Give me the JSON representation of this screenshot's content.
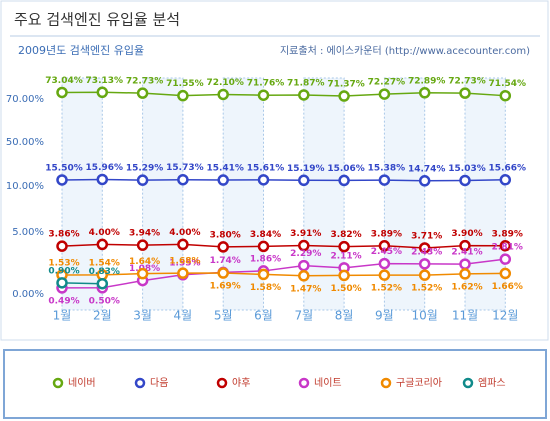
{
  "chart_data": {
    "type": "line",
    "title": "주요 검색엔진 유입율 분석",
    "subtitle": "2009년도 검색엔진 유입율",
    "source": "지료출처 : 에이스카운터 (http://www.acecounter.com)",
    "categories": [
      "1월",
      "2월",
      "3월",
      "4월",
      "5월",
      "6월",
      "7월",
      "8월",
      "9월",
      "10월",
      "11월",
      "12월"
    ],
    "ylim": [
      0,
      80
    ],
    "yticks": [
      {
        "value": 0,
        "label": "0.00%"
      },
      {
        "value": 5,
        "label": "5.00%"
      },
      {
        "value": 10,
        "label": "10.00%"
      },
      {
        "value": 50,
        "label": "50.00%"
      },
      {
        "value": 70,
        "label": "70.00%"
      }
    ],
    "legend": "bottom",
    "series": [
      {
        "name": "네이버",
        "color": "#66a811",
        "values": [
          73.04,
          73.13,
          72.73,
          71.55,
          72.1,
          71.76,
          71.87,
          71.37,
          72.27,
          72.89,
          72.73,
          71.54
        ],
        "value_labels": [
          "73.04%",
          "73.13%",
          "72.73%",
          "71.55%",
          "72.10%",
          "71.76%",
          "71.87%",
          "71.37%",
          "72.27%",
          "72.89%",
          "72.73%",
          "71.54%"
        ]
      },
      {
        "name": "다음",
        "color": "#3347c8",
        "values": [
          15.5,
          15.96,
          15.29,
          15.73,
          15.41,
          15.61,
          15.19,
          15.06,
          15.38,
          14.74,
          15.03,
          15.66
        ],
        "value_labels": [
          "15.50%",
          "15.96%",
          "15.29%",
          "15.73%",
          "15.41%",
          "15.61%",
          "15.19%",
          "15.06%",
          "15.38%",
          "14.74%",
          "15.03%",
          "15.66%"
        ]
      },
      {
        "name": "야후",
        "color": "#c00000",
        "values": [
          3.86,
          4.0,
          3.94,
          4.0,
          3.8,
          3.84,
          3.91,
          3.82,
          3.89,
          3.71,
          3.9,
          3.89
        ],
        "value_labels": [
          "3.86%",
          "4.00%",
          "3.94%",
          "4.00%",
          "3.80%",
          "3.84%",
          "3.91%",
          "3.82%",
          "3.89%",
          "3.71%",
          "3.90%",
          "3.89%"
        ]
      },
      {
        "name": "네이트",
        "color": "#c837c8",
        "values": [
          0.49,
          0.5,
          1.08,
          1.55,
          1.74,
          1.86,
          2.29,
          2.11,
          2.45,
          2.43,
          2.41,
          2.81
        ],
        "value_labels": [
          "0.49%",
          "0.50%",
          "1.08%",
          "1.55%",
          "1.74%",
          "1.86%",
          "2.29%",
          "2.11%",
          "2.45%",
          "2.43%",
          "2.41%",
          "2.81%"
        ]
      },
      {
        "name": "구글코리아",
        "color": "#f08a00",
        "values": [
          1.53,
          1.54,
          1.64,
          1.68,
          1.69,
          1.58,
          1.47,
          1.5,
          1.52,
          1.52,
          1.62,
          1.66
        ],
        "value_labels": [
          "1.53%",
          "1.54%",
          "1.64%",
          "1.68%",
          "1.69%",
          "1.58%",
          "1.47%",
          "1.50%",
          "1.52%",
          "1.52%",
          "1.62%",
          "1.66%"
        ]
      },
      {
        "name": "엠파스",
        "color": "#108a8a",
        "values": [
          0.9,
          0.83,
          null,
          null,
          null,
          null,
          null,
          null,
          null,
          null,
          null,
          null
        ],
        "value_labels": [
          "0.90%",
          "0.83%",
          null,
          null,
          null,
          null,
          null,
          null,
          null,
          null,
          null,
          null
        ]
      }
    ]
  }
}
